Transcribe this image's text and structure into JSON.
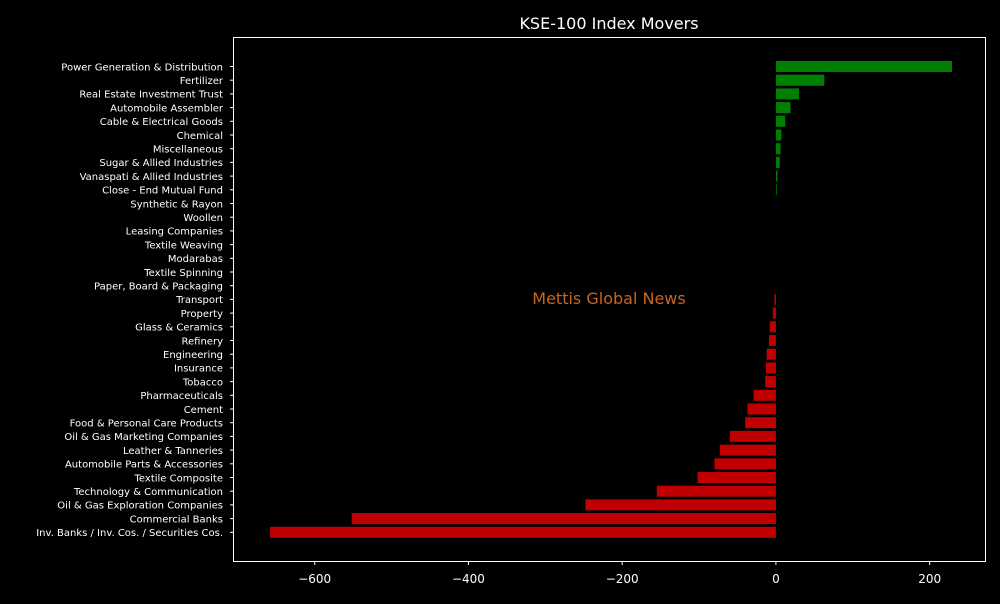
{
  "chart_data": {
    "type": "bar",
    "orientation": "horizontal",
    "title": "KSE-100 Index Movers",
    "watermark": "Mettis Global News",
    "xlabel": "",
    "ylabel": "",
    "xlim": [
      -705,
      272
    ],
    "xticks": [
      {
        "value": -600,
        "label": "−600"
      },
      {
        "value": -400,
        "label": "−400"
      },
      {
        "value": -200,
        "label": "−200"
      },
      {
        "value": 0,
        "label": "0"
      },
      {
        "value": 200,
        "label": "200"
      }
    ],
    "grid": false,
    "colors": {
      "background": "#000000",
      "text": "#ffffff",
      "positive": "#008000",
      "negative": "#c00000",
      "watermark": "#c8661e"
    },
    "categories": [
      "Power Generation & Distribution",
      "Fertilizer",
      "Real Estate Investment Trust",
      "Automobile Assembler",
      "Cable & Electrical Goods",
      "Chemical",
      "Miscellaneous",
      "Sugar & Allied Industries",
      "Vanaspati & Allied Industries",
      "Close - End Mutual Fund",
      "Synthetic & Rayon",
      "Woollen",
      "Leasing Companies",
      "Textile Weaving",
      "Modarabas",
      "Textile Spinning",
      "Paper, Board & Packaging",
      "Transport",
      "Property",
      "Glass & Ceramics",
      "Refinery",
      "Engineering",
      "Insurance",
      "Tobacco",
      "Pharmaceuticals",
      "Cement",
      "Food & Personal Care Products",
      "Oil & Gas Marketing Companies",
      "Leather & Tanneries",
      "Automobile Parts & Accessories",
      "Textile Composite",
      "Technology & Communication",
      "Oil & Gas Exploration Companies",
      "Commercial Banks",
      "Inv. Banks / Inv. Cos. / Securities Cos."
    ],
    "values": [
      229,
      63,
      30,
      19,
      12,
      7,
      6,
      5,
      2,
      1,
      0,
      0,
      0,
      0,
      0,
      0,
      0,
      -2,
      -4,
      -8,
      -9,
      -12,
      -13,
      -14,
      -29,
      -37,
      -40,
      -60,
      -73,
      -80,
      -102,
      -155,
      -248,
      -552,
      -658
    ]
  }
}
